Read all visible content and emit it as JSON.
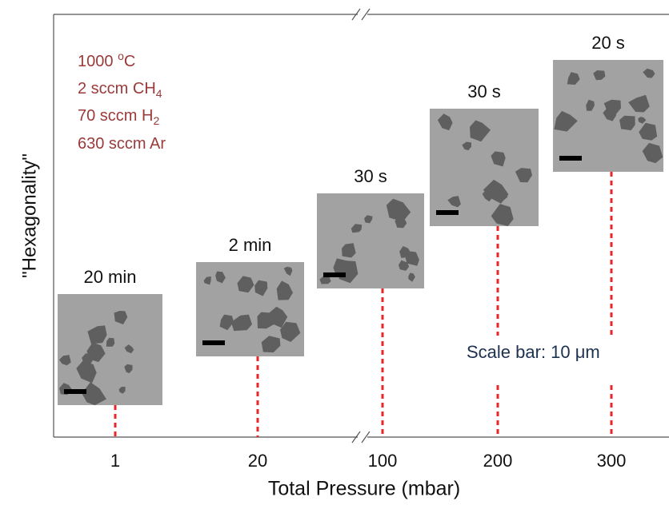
{
  "chart_data": {
    "type": "image-panels",
    "x_label": "Total Pressure (mbar)",
    "y_label": "\"Hexagonality\"",
    "categories": [
      "1",
      "20",
      "100",
      "200",
      "300"
    ],
    "panel_labels": [
      "20 min",
      "2 min",
      "30 s",
      "30 s",
      "20 s"
    ],
    "conditions": [
      {
        "main": "1000 ",
        "sup": "o",
        "tail": "C"
      },
      {
        "main": "2 sccm  CH",
        "sub": "4"
      },
      {
        "main": "70 sccm  H",
        "sub": "2"
      },
      {
        "main": "630 sccm  Ar"
      }
    ],
    "scale_note": "Scale bar: 10 μm"
  }
}
